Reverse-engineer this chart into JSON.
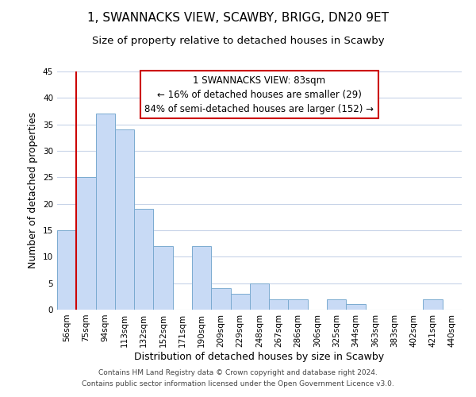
{
  "title": "1, SWANNACKS VIEW, SCAWBY, BRIGG, DN20 9ET",
  "subtitle": "Size of property relative to detached houses in Scawby",
  "xlabel": "Distribution of detached houses by size in Scawby",
  "ylabel": "Number of detached properties",
  "bar_color": "#c8daf5",
  "bar_edge_color": "#7aaad0",
  "categories": [
    "56sqm",
    "75sqm",
    "94sqm",
    "113sqm",
    "132sqm",
    "152sqm",
    "171sqm",
    "190sqm",
    "209sqm",
    "229sqm",
    "248sqm",
    "267sqm",
    "286sqm",
    "306sqm",
    "325sqm",
    "344sqm",
    "363sqm",
    "383sqm",
    "402sqm",
    "421sqm",
    "440sqm"
  ],
  "values": [
    15,
    25,
    37,
    34,
    19,
    12,
    0,
    12,
    4,
    3,
    5,
    2,
    2,
    0,
    2,
    1,
    0,
    0,
    0,
    2,
    0
  ],
  "ylim": [
    0,
    45
  ],
  "yticks": [
    0,
    5,
    10,
    15,
    20,
    25,
    30,
    35,
    40,
    45
  ],
  "annotation_text_line1": "1 SWANNACKS VIEW: 83sqm",
  "annotation_text_line2": "← 16% of detached houses are smaller (29)",
  "annotation_text_line3": "84% of semi-detached houses are larger (152) →",
  "footer_line1": "Contains HM Land Registry data © Crown copyright and database right 2024.",
  "footer_line2": "Contains public sector information licensed under the Open Government Licence v3.0.",
  "background_color": "#ffffff",
  "grid_color": "#c8d4e8",
  "annotation_box_edge": "#cc0000",
  "property_line_color": "#cc0000",
  "title_fontsize": 11,
  "subtitle_fontsize": 9.5,
  "axis_label_fontsize": 9,
  "tick_fontsize": 7.5,
  "annotation_fontsize": 8.5,
  "footer_fontsize": 6.5
}
